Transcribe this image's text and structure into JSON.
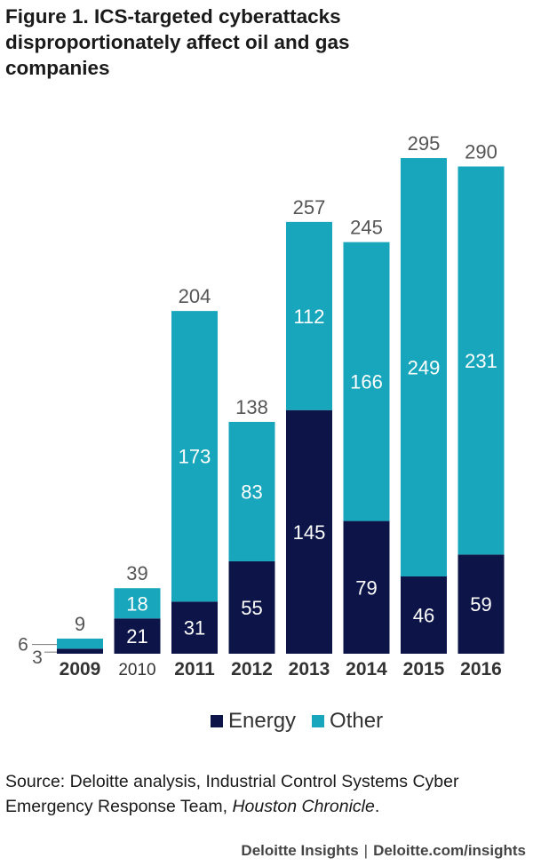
{
  "title": "Figure 1. ICS-targeted cyberattacks disproportionately affect oil and gas companies",
  "colors": {
    "energy": "#0d1548",
    "other": "#18a6bd",
    "label_dark": "#555555"
  },
  "chart_data": {
    "type": "bar",
    "stacked": true,
    "categories": [
      "2009",
      "2010",
      "2011",
      "2012",
      "2013",
      "2014",
      "2015",
      "2016"
    ],
    "series": [
      {
        "name": "Energy",
        "values": [
          3,
          21,
          31,
          55,
          145,
          79,
          46,
          59
        ]
      },
      {
        "name": "Other",
        "values": [
          6,
          18,
          173,
          83,
          112,
          166,
          249,
          231
        ]
      }
    ],
    "totals": [
      9,
      39,
      204,
      138,
      257,
      245,
      295,
      290
    ],
    "legend": [
      "Energy",
      "Other"
    ],
    "legend_position": "bottom",
    "grid": false,
    "ylim": [
      0,
      300
    ]
  },
  "source": {
    "prefix": "Source: Deloitte analysis, Industrial Control Systems Cyber Emergency Response Team, ",
    "italic": "Houston Chronicle",
    "suffix": "."
  },
  "footer": {
    "brand": "Deloitte Insights",
    "separator": "|",
    "site": "Deloitte.com/insights"
  }
}
